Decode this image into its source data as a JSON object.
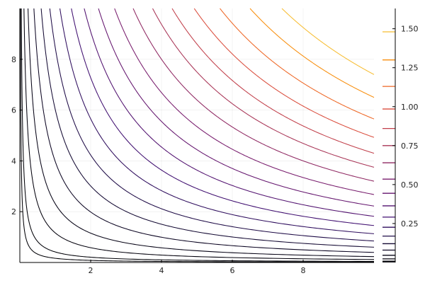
{
  "chart_data": {
    "type": "line",
    "subtype": "contour",
    "function": "z = 0.02 * x * y",
    "title": "",
    "xlabel": "",
    "ylabel": "",
    "xlim": [
      0,
      10
    ],
    "ylim": [
      0,
      10
    ],
    "x_ticks": [
      2,
      4,
      6,
      8
    ],
    "y_ticks": [
      2,
      4,
      6,
      8
    ],
    "x_tick_labels": [
      "2",
      "4",
      "6",
      "8"
    ],
    "y_tick_labels": [
      "2",
      "4",
      "6",
      "8"
    ],
    "grid": true,
    "colormap": "inferno",
    "colorbar": {
      "position": "right",
      "range": [
        0,
        1.63
      ],
      "ticks": [
        0.25,
        0.5,
        0.75,
        1.0,
        1.25,
        1.5
      ],
      "tick_labels": [
        "0.25",
        "0.50",
        "0.75",
        "1.00",
        "1.25",
        "1.50"
      ]
    },
    "levels": [
      0.0033,
      0.0083,
      0.0233,
      0.0462,
      0.0795,
      0.1205,
      0.1692,
      0.2262,
      0.291,
      0.3636,
      0.4441,
      0.535,
      0.64,
      0.75,
      0.86,
      0.985,
      1.13,
      1.3,
      1.48
    ],
    "colors": [
      "#000004",
      "#160b39",
      "#3b0f70",
      "#5c126e",
      "#7a1d6d",
      "#982d5e",
      "#b73a4e",
      "#d44842",
      "#ea5c2d",
      "#f57d15",
      "#fb9b06",
      "#f6c137",
      "#fcffa4"
    ]
  }
}
